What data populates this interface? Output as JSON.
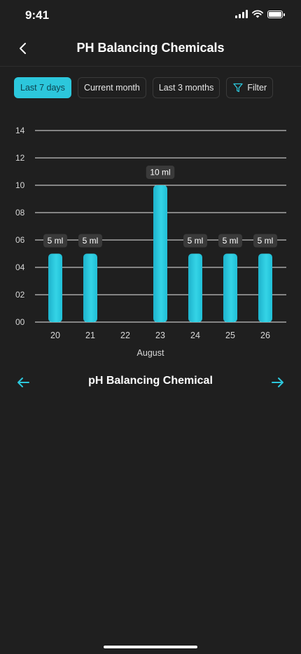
{
  "status_bar": {
    "time": "9:41"
  },
  "header": {
    "title": "PH Balancing Chemicals"
  },
  "filters": [
    {
      "label": "Last 7 days",
      "active": true
    },
    {
      "label": "Current month",
      "active": false
    },
    {
      "label": "Last 3 months",
      "active": false
    },
    {
      "label": "Filter",
      "active": false,
      "icon": "filter-icon"
    }
  ],
  "chemical_nav": {
    "name": "pH Balancing Chemical",
    "prev_icon": "arrow-left-icon",
    "next_icon": "arrow-right-icon"
  },
  "colors": {
    "accent": "#2cc7dc",
    "background": "#1f1f1f",
    "label_bg": "#3a3a3a"
  },
  "chart_data": {
    "type": "bar",
    "categories": [
      "20",
      "21",
      "22",
      "23",
      "24",
      "25",
      "26"
    ],
    "values": [
      5,
      5,
      null,
      10,
      5,
      5,
      5
    ],
    "data_labels": [
      "5 ml",
      "5 ml",
      "",
      "10 ml",
      "5 ml",
      "5 ml",
      "5 ml"
    ],
    "xlabel": "August",
    "ylabel": "",
    "ylim": [
      0,
      14
    ],
    "yticks": [
      0,
      2,
      4,
      6,
      8,
      10,
      12,
      14
    ],
    "ytick_labels": [
      "00",
      "02",
      "04",
      "06",
      "08",
      "10",
      "12",
      "14"
    ],
    "grid": true
  }
}
